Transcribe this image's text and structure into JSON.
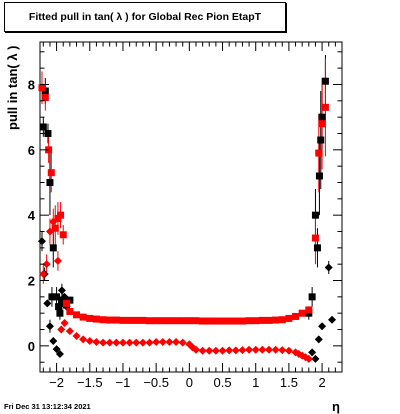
{
  "title": "Fitted pull in tan( λ ) for Global Rec Pion EtapT",
  "ylabel": "pull in tan( λ )",
  "xlabel": "η",
  "footer": "Fri Dec 31 13:12:34 2021",
  "chart_data": {
    "type": "scatter",
    "title": "Fitted pull in tan( λ ) for Global Rec Pion EtapT",
    "xlabel": "η",
    "ylabel": "pull in tan( λ )",
    "xlim": [
      -2.25,
      2.3
    ],
    "ylim": [
      -0.8,
      9.3
    ],
    "x_ticks": [
      -2,
      -1.5,
      -1,
      -0.5,
      0,
      0.5,
      1,
      1.5,
      2
    ],
    "x_tick_labels": [
      "−2",
      "−1.5",
      "−1",
      "−0.5",
      "0",
      "0.5",
      "1",
      "1.5",
      "2"
    ],
    "y_ticks": [
      0,
      2,
      4,
      6,
      8
    ],
    "y_tick_labels": [
      "0",
      "2",
      "4",
      "6",
      "8"
    ],
    "series": [
      {
        "marker": "square",
        "color": "#000000",
        "points": [
          [
            -2.2,
            6.7
          ],
          [
            -2.17,
            7.8
          ],
          [
            -2.13,
            6.5
          ],
          [
            -2.1,
            5.0
          ],
          [
            -2.07,
            1.5
          ],
          [
            -2.05,
            3.0
          ],
          [
            -2.0,
            1.5
          ],
          [
            -1.97,
            1.2
          ],
          [
            -1.95,
            1.0
          ],
          [
            -1.92,
            1.3
          ],
          [
            -1.9,
            1.4
          ],
          [
            -1.85,
            1.25
          ],
          [
            -1.8,
            1.4
          ],
          [
            1.8,
            1.0
          ],
          [
            1.85,
            1.5
          ],
          [
            1.9,
            4.0
          ],
          [
            1.93,
            3.0
          ],
          [
            1.96,
            5.2
          ],
          [
            1.98,
            6.3
          ],
          [
            2.0,
            7.0
          ],
          [
            2.05,
            8.1
          ]
        ],
        "err": [
          0.3,
          0.4,
          0.3,
          1.0,
          0.3,
          0.6,
          0.3,
          0.2,
          0.2,
          0.2,
          0.2,
          0.1,
          0.1,
          0.2,
          0.3,
          0.8,
          0.6,
          1.2,
          1.5,
          1.0,
          0.8
        ]
      },
      {
        "marker": "diamond",
        "color": "#000000",
        "points": [
          [
            -2.22,
            3.2
          ],
          [
            -2.18,
            2.2
          ],
          [
            -2.14,
            1.3
          ],
          [
            -2.1,
            0.6
          ],
          [
            -2.05,
            0.15
          ],
          [
            -2.0,
            -0.1
          ],
          [
            -1.95,
            -0.25
          ],
          [
            -1.92,
            1.7
          ],
          [
            -1.88,
            1.5
          ],
          [
            -1.85,
            1.2
          ],
          [
            1.85,
            -0.2
          ],
          [
            1.9,
            -0.4
          ],
          [
            1.95,
            0.2
          ],
          [
            2.0,
            0.6
          ],
          [
            2.1,
            2.4
          ],
          [
            2.15,
            0.8
          ]
        ],
        "err": [
          0.3,
          0.2,
          0.1,
          0.2,
          0.1,
          0.1,
          0.1,
          0.2,
          0.1,
          0.1,
          0.1,
          0.1,
          0.1,
          0.1,
          0.2,
          0.1
        ]
      },
      {
        "marker": "square",
        "color": "#ff0000",
        "points": [
          [
            -2.22,
            7.9
          ],
          [
            -2.17,
            7.6
          ],
          [
            -2.12,
            6.0
          ],
          [
            -2.08,
            5.3
          ],
          [
            -2.02,
            3.6
          ],
          [
            -1.98,
            3.9
          ],
          [
            -1.94,
            4.0
          ],
          [
            -1.9,
            3.4
          ],
          [
            -1.85,
            1.3
          ],
          [
            -1.8,
            1.05
          ],
          [
            -1.7,
            0.95
          ],
          [
            -1.6,
            0.88
          ],
          [
            -1.5,
            0.84
          ],
          [
            -1.4,
            0.82
          ],
          [
            -1.3,
            0.8
          ],
          [
            -1.2,
            0.79
          ],
          [
            -1.1,
            0.79
          ],
          [
            -1.0,
            0.78
          ],
          [
            -0.9,
            0.78
          ],
          [
            -0.8,
            0.78
          ],
          [
            -0.7,
            0.78
          ],
          [
            -0.6,
            0.77
          ],
          [
            -0.5,
            0.77
          ],
          [
            -0.4,
            0.77
          ],
          [
            -0.3,
            0.77
          ],
          [
            -0.2,
            0.77
          ],
          [
            -0.1,
            0.77
          ],
          [
            0.0,
            0.77
          ],
          [
            0.1,
            0.77
          ],
          [
            0.2,
            0.76
          ],
          [
            0.3,
            0.76
          ],
          [
            0.4,
            0.76
          ],
          [
            0.5,
            0.76
          ],
          [
            0.6,
            0.76
          ],
          [
            0.7,
            0.76
          ],
          [
            0.8,
            0.76
          ],
          [
            0.9,
            0.77
          ],
          [
            1.0,
            0.77
          ],
          [
            1.1,
            0.78
          ],
          [
            1.2,
            0.78
          ],
          [
            1.3,
            0.79
          ],
          [
            1.4,
            0.8
          ],
          [
            1.5,
            0.84
          ],
          [
            1.6,
            0.9
          ],
          [
            1.7,
            1.0
          ],
          [
            1.8,
            1.1
          ],
          [
            1.9,
            3.3
          ],
          [
            1.95,
            5.9
          ],
          [
            2.0,
            6.8
          ],
          [
            2.05,
            7.3
          ]
        ],
        "err": [
          0.5,
          0.4,
          0.4,
          0.6,
          0.7,
          0.5,
          0.4,
          0.3,
          0.1,
          0.05,
          0.03,
          0.03,
          0.03,
          0.03,
          0.03,
          0.03,
          0.03,
          0.03,
          0.03,
          0.03,
          0.03,
          0.03,
          0.03,
          0.03,
          0.03,
          0.03,
          0.03,
          0.03,
          0.03,
          0.03,
          0.03,
          0.03,
          0.03,
          0.03,
          0.03,
          0.03,
          0.03,
          0.03,
          0.03,
          0.03,
          0.03,
          0.03,
          0.03,
          0.03,
          0.05,
          0.08,
          0.8,
          1.2,
          1.4,
          1.5
        ]
      },
      {
        "marker": "diamond",
        "color": "#ff0000",
        "points": [
          [
            -2.2,
            2.2
          ],
          [
            -2.15,
            2.5
          ],
          [
            -2.1,
            3.5
          ],
          [
            -2.05,
            3.8
          ],
          [
            -1.98,
            2.6
          ],
          [
            -1.93,
            0.5
          ],
          [
            -1.88,
            0.7
          ],
          [
            -1.8,
            0.45
          ],
          [
            -1.7,
            0.3
          ],
          [
            -1.6,
            0.2
          ],
          [
            -1.5,
            0.15
          ],
          [
            -1.4,
            0.12
          ],
          [
            -1.3,
            0.1
          ],
          [
            -1.2,
            0.1
          ],
          [
            -1.1,
            0.1
          ],
          [
            -1.0,
            0.1
          ],
          [
            -0.9,
            0.1
          ],
          [
            -0.8,
            0.1
          ],
          [
            -0.7,
            0.1
          ],
          [
            -0.6,
            0.1
          ],
          [
            -0.5,
            0.12
          ],
          [
            -0.4,
            0.12
          ],
          [
            -0.3,
            0.12
          ],
          [
            -0.2,
            0.12
          ],
          [
            -0.1,
            0.1
          ],
          [
            0.0,
            0.05
          ],
          [
            0.05,
            -0.05
          ],
          [
            0.1,
            -0.12
          ],
          [
            0.2,
            -0.15
          ],
          [
            0.3,
            -0.15
          ],
          [
            0.4,
            -0.15
          ],
          [
            0.5,
            -0.15
          ],
          [
            0.6,
            -0.14
          ],
          [
            0.7,
            -0.14
          ],
          [
            0.8,
            -0.13
          ],
          [
            0.9,
            -0.12
          ],
          [
            1.0,
            -0.12
          ],
          [
            1.1,
            -0.12
          ],
          [
            1.2,
            -0.12
          ],
          [
            1.3,
            -0.12
          ],
          [
            1.4,
            -0.13
          ],
          [
            1.5,
            -0.15
          ],
          [
            1.6,
            -0.2
          ],
          [
            1.65,
            -0.25
          ],
          [
            1.7,
            -0.3
          ],
          [
            1.75,
            -0.35
          ],
          [
            1.8,
            -0.4
          ]
        ],
        "err": [
          0.3,
          0.3,
          0.4,
          0.4,
          0.3,
          0.1,
          0.1,
          0.05,
          0.03,
          0.03,
          0.03,
          0.03,
          0.03,
          0.03,
          0.03,
          0.03,
          0.03,
          0.03,
          0.03,
          0.03,
          0.03,
          0.03,
          0.03,
          0.03,
          0.03,
          0.03,
          0.03,
          0.03,
          0.03,
          0.03,
          0.03,
          0.03,
          0.03,
          0.03,
          0.03,
          0.03,
          0.03,
          0.03,
          0.03,
          0.03,
          0.03,
          0.03,
          0.05,
          0.05,
          0.05,
          0.05,
          0.06
        ]
      }
    ]
  }
}
